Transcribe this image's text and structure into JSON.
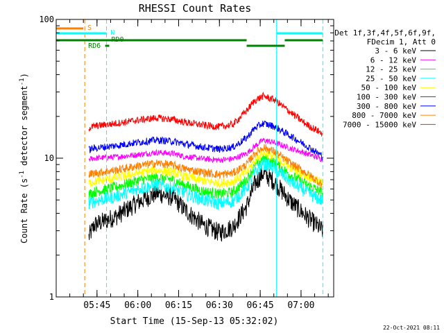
{
  "chart_data": {
    "type": "line",
    "title": "RHESSI Count Rates",
    "xlabel": "Start Time (15-Sep-13 05:32:02)",
    "ylabel_main": "Count Rate (s",
    "ylabel_sup": "-1",
    "ylabel_mid": " detector segment",
    "ylabel_sup2": "-1",
    "ylabel_end": ")",
    "yscale": "log",
    "ylim": [
      1,
      100
    ],
    "xlim_min": [
      -2,
      100
    ],
    "y_ticks": [
      {
        "value": 1,
        "label": "1"
      },
      {
        "value": 10,
        "label": "10"
      },
      {
        "value": 100,
        "label": "100"
      }
    ],
    "x_ticks": [
      {
        "value": 13,
        "label": "05:45"
      },
      {
        "value": 28,
        "label": "06:00"
      },
      {
        "value": 43,
        "label": "06:15"
      },
      {
        "value": 58,
        "label": "06:30"
      },
      {
        "value": 73,
        "label": "06:45"
      },
      {
        "value": 88,
        "label": "07:00"
      }
    ],
    "x_minor_step": 5,
    "legend_header": [
      "Det 1f,3f,4f,5f,6f,9f,",
      "FDecim 1, Att 0"
    ],
    "series": [
      {
        "name": "3 - 6 keV",
        "color": "#000000",
        "x": [
          10,
          12,
          20,
          28,
          35,
          41,
          45,
          52,
          58,
          63,
          68,
          71,
          74,
          78,
          84,
          90,
          96
        ],
        "y": [
          2.7,
          3.3,
          3.8,
          4.8,
          5.6,
          5.2,
          4.3,
          3.3,
          2.9,
          3.2,
          4.5,
          6.5,
          7.8,
          6.8,
          4.9,
          3.8,
          3.0
        ]
      },
      {
        "name": "6 - 12 keV",
        "color": "#ff00ff",
        "x": [
          10,
          12,
          20,
          28,
          35,
          41,
          45,
          52,
          58,
          63,
          68,
          71,
          74,
          78,
          84,
          90,
          96
        ],
        "y": [
          9.8,
          10.0,
          10.2,
          10.6,
          11.0,
          10.8,
          10.3,
          9.9,
          9.7,
          9.9,
          10.8,
          12.2,
          13.5,
          13.0,
          11.8,
          10.8,
          9.8
        ]
      },
      {
        "name": "12 - 25 keV",
        "color": "#00ff00",
        "x": [
          10,
          12,
          20,
          28,
          35,
          41,
          45,
          52,
          58,
          63,
          68,
          71,
          74,
          78,
          84,
          90,
          96
        ],
        "y": [
          5.5,
          5.7,
          6.2,
          6.9,
          7.3,
          7.0,
          6.4,
          5.8,
          5.5,
          5.7,
          7.0,
          8.8,
          10.0,
          9.3,
          7.6,
          6.5,
          5.6
        ]
      },
      {
        "name": "25 - 50 keV",
        "color": "#00ffff",
        "x": [
          10,
          12,
          20,
          28,
          35,
          41,
          45,
          52,
          58,
          63,
          68,
          71,
          74,
          78,
          84,
          90,
          96
        ],
        "y": [
          4.7,
          4.9,
          5.3,
          6.0,
          6.4,
          6.1,
          5.6,
          5.0,
          4.7,
          4.9,
          6.1,
          7.8,
          9.2,
          8.5,
          6.8,
          5.7,
          4.9
        ]
      },
      {
        "name": "50 - 100 keV",
        "color": "#ffff00",
        "x": [
          10,
          12,
          20,
          28,
          35,
          41,
          45,
          52,
          58,
          63,
          68,
          71,
          74,
          78,
          84,
          90,
          96
        ],
        "y": [
          6.6,
          6.8,
          7.2,
          7.8,
          8.2,
          7.9,
          7.4,
          6.9,
          6.6,
          6.8,
          7.9,
          9.6,
          11.0,
          10.3,
          8.6,
          7.5,
          6.6
        ]
      },
      {
        "name": "100 - 300 keV",
        "color": "#ff0000",
        "x": [
          10,
          12,
          20,
          28,
          35,
          41,
          45,
          52,
          58,
          63,
          68,
          71,
          74,
          78,
          84,
          90,
          96
        ],
        "y": [
          16.5,
          17.0,
          17.8,
          18.8,
          19.5,
          19.0,
          18.2,
          17.3,
          16.8,
          17.5,
          22.0,
          26.0,
          28.0,
          26.5,
          21.5,
          17.5,
          15.0
        ]
      },
      {
        "name": "300 - 800 keV",
        "color": "#0000ff",
        "x": [
          10,
          12,
          20,
          28,
          35,
          41,
          45,
          52,
          58,
          63,
          68,
          71,
          74,
          78,
          84,
          90,
          96
        ],
        "y": [
          11.5,
          11.8,
          12.3,
          13.0,
          13.5,
          13.2,
          12.7,
          12.0,
          11.6,
          12.0,
          14.0,
          16.5,
          17.8,
          17.0,
          14.5,
          12.3,
          10.3
        ]
      },
      {
        "name": "800 - 7000 keV",
        "color": "#ff8000",
        "x": [
          10,
          12,
          20,
          28,
          35,
          41,
          45,
          52,
          58,
          63,
          68,
          71,
          74,
          78,
          84,
          90,
          96
        ],
        "y": [
          7.6,
          7.8,
          8.2,
          8.8,
          9.2,
          8.9,
          8.4,
          7.9,
          7.6,
          7.8,
          9.0,
          10.8,
          12.0,
          11.2,
          9.2,
          7.8,
          6.4
        ]
      },
      {
        "name": "7000 - 15000 keV",
        "color": "#a05000",
        "x": [],
        "y": []
      }
    ],
    "flags": [
      {
        "label": "S",
        "color": "#ff8000",
        "segments": [
          [
            -2,
            8
          ]
        ]
      },
      {
        "label": "N",
        "color": "#00ffff",
        "segments": [
          [
            -2,
            16.5
          ],
          [
            79,
            96
          ]
        ]
      },
      {
        "label": "RD0",
        "color": "#008000",
        "segments": [
          [
            -2,
            68
          ],
          [
            82,
            96
          ]
        ]
      },
      {
        "label": "RD6",
        "color": "#008000",
        "segments": [
          [
            16,
            17.5
          ],
          [
            68,
            82
          ]
        ]
      }
    ],
    "vlines": [
      {
        "x": 8.5,
        "color": "#ff8000",
        "style": "dashed"
      },
      {
        "x": 16.5,
        "color": "#00ffff",
        "style": "dashed"
      },
      {
        "x": 79,
        "color": "#00ffff",
        "style": "solid"
      },
      {
        "x": 96,
        "color": "#00ffff",
        "style": "dashed"
      }
    ]
  },
  "timestamp": "22-Oct-2021 08:11"
}
